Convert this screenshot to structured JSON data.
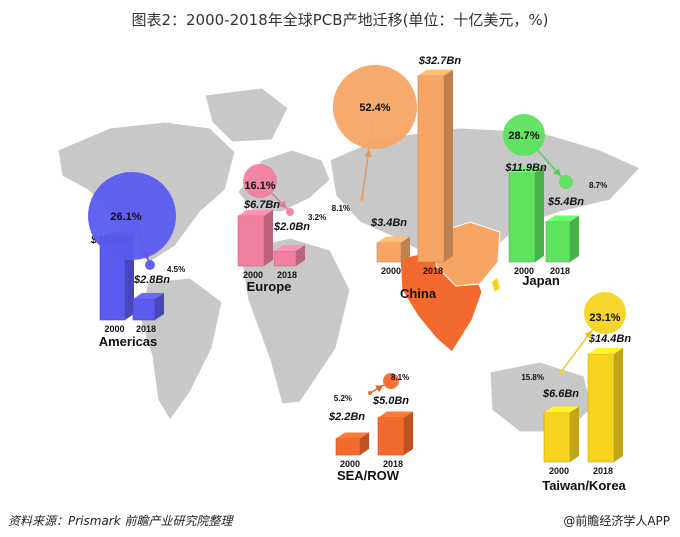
{
  "title": "图表2：2000-2018年全球PCB产地迁移(单位：十亿美元，%)",
  "source": "资料来源：Prismark 前瞻产业研究院整理",
  "brand": "@前瞻经济学人APP",
  "chart_data": {
    "type": "bar",
    "title": "图表2：2000-2018年全球PCB产地迁移(单位：十亿美元，%)",
    "categories": [
      "2000",
      "2018"
    ],
    "series": [
      {
        "name": "Americas",
        "color": "#5b5bf0",
        "values": [
          10.9,
          2.8
        ],
        "labels": [
          "$10.9Bn",
          "$2.8Bn"
        ],
        "share": [
          26.1,
          4.5
        ],
        "share_labels": [
          "26.1%",
          "4.5%"
        ]
      },
      {
        "name": "Europe",
        "color": "#f07fa0",
        "values": [
          6.7,
          2.0
        ],
        "labels": [
          "$6.7Bn",
          "$2.0Bn"
        ],
        "share": [
          16.1,
          3.2
        ],
        "share_labels": [
          "16.1%",
          "3.2%"
        ]
      },
      {
        "name": "China",
        "color": "#f7a565",
        "values": [
          3.4,
          32.7
        ],
        "labels": [
          "$3.4Bn",
          "$32.7Bn"
        ],
        "share": [
          8.1,
          52.4
        ],
        "share_labels": [
          "8.1%",
          "52.4%"
        ]
      },
      {
        "name": "Japan",
        "color": "#5ee35e",
        "values": [
          11.9,
          5.4
        ],
        "labels": [
          "$11.9Bn",
          "$5.4Bn"
        ],
        "share": [
          28.7,
          8.7
        ],
        "share_labels": [
          "28.7%",
          "8.7%"
        ]
      },
      {
        "name": "SEA/ROW",
        "color": "#f36a2e",
        "values": [
          2.2,
          5.0
        ],
        "labels": [
          "$2.2Bn",
          "$5.0Bn"
        ],
        "share": [
          5.2,
          8.1
        ],
        "share_labels": [
          "5.2%",
          "8.1%"
        ]
      },
      {
        "name": "Taiwan/Korea",
        "color": "#f7d320",
        "values": [
          6.6,
          14.4
        ],
        "labels": [
          "$6.6Bn",
          "$14.4Bn"
        ],
        "share": [
          15.8,
          23.1
        ],
        "share_labels": [
          "15.8%",
          "23.1%"
        ]
      }
    ],
    "year_labels": [
      "2000",
      "2018"
    ],
    "colors": {
      "map": "#c8c8c8",
      "china_map": "#f7a565",
      "sea_map": "#f36a2e"
    }
  }
}
